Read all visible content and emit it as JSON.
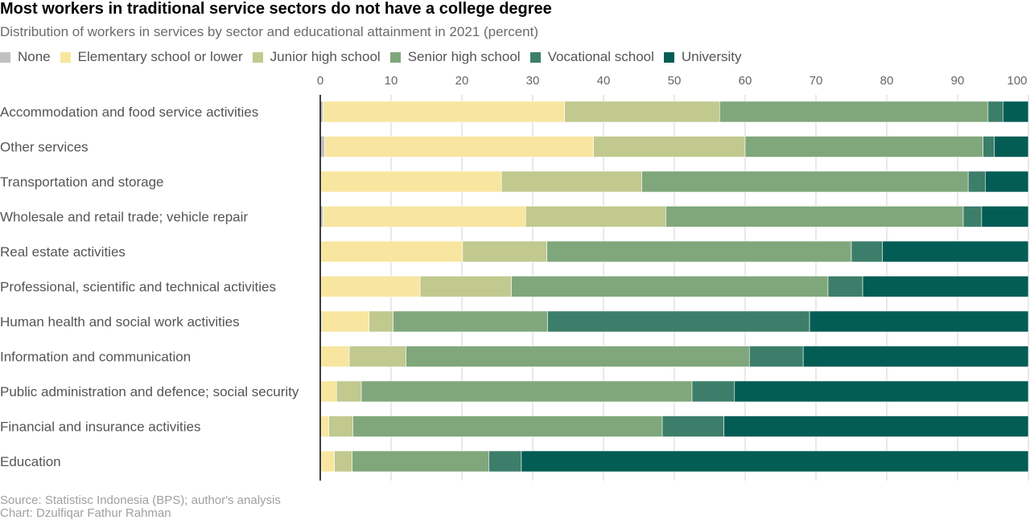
{
  "header": {
    "title": "Most workers in traditional service sectors do not have a college degree",
    "subtitle": "Distribution of workers in services by sector and educational attainment in 2021 (percent)"
  },
  "footer": {
    "source": "Source: Statistisc Indonesia (BPS); author's analysis",
    "credit": "Chart: Dzulfiqar Fathur Rahman"
  },
  "chart_data": {
    "type": "bar",
    "orientation": "horizontal",
    "stacked": true,
    "title": "Most workers in traditional service sectors do not have a college degree",
    "subtitle": "Distribution of workers in services by sector and educational attainment in 2021 (percent)",
    "xlim": [
      0,
      100
    ],
    "x_ticks": [
      0,
      10,
      20,
      30,
      40,
      50,
      60,
      70,
      80,
      90,
      100
    ],
    "x_axis_position": "top",
    "grid": true,
    "legend_position": "top-left",
    "categories": [
      "Accommodation and food service activities",
      "Other services",
      "Transportation and storage",
      "Wholesale and retail trade; vehicle repair",
      "Real estate activities",
      "Professional, scientific and technical activities",
      "Human health and social work activities",
      "Information and communication",
      "Public administration and defence; social security",
      "Financial and insurance activities",
      "Education"
    ],
    "series": [
      {
        "name": "None",
        "color": "#c0c0c0",
        "values": [
          0.4,
          0.6,
          0.1,
          0.4,
          0.1,
          0.1,
          0.2,
          0.1,
          0.1,
          0.1,
          0.1
        ]
      },
      {
        "name": "Elementary school or lower",
        "color": "#f8e6a0",
        "values": [
          34.1,
          38.0,
          25.5,
          28.6,
          20.0,
          14.0,
          6.7,
          4.0,
          2.2,
          1.1,
          1.9
        ]
      },
      {
        "name": "Junior high school",
        "color": "#c1c98f",
        "values": [
          21.9,
          21.4,
          19.8,
          19.8,
          11.9,
          12.9,
          3.4,
          8.0,
          3.5,
          3.4,
          2.5
        ]
      },
      {
        "name": "Senior high school",
        "color": "#80a77c",
        "values": [
          37.9,
          33.6,
          46.1,
          42.0,
          43.0,
          44.7,
          21.8,
          48.5,
          46.7,
          43.7,
          19.3
        ]
      },
      {
        "name": "Vocational school",
        "color": "#3d7e6a",
        "values": [
          2.1,
          1.6,
          2.4,
          2.6,
          4.4,
          4.9,
          37.0,
          7.6,
          6.0,
          8.7,
          4.6
        ]
      },
      {
        "name": "University",
        "color": "#035d55",
        "values": [
          3.6,
          4.8,
          6.1,
          6.6,
          20.6,
          23.4,
          30.9,
          31.8,
          41.5,
          43.0,
          71.6
        ]
      }
    ]
  }
}
